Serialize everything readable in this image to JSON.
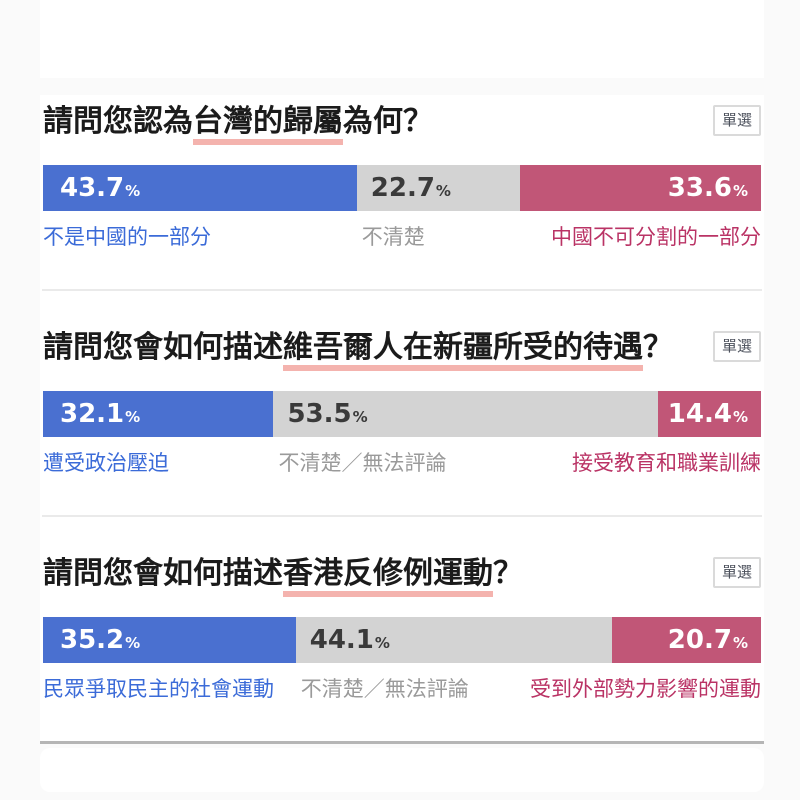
{
  "unit": "%",
  "badge_label": "單選",
  "colors": {
    "blue_bar": "#4a70d0",
    "blue_label": "#3b6bd8",
    "gray_bar": "#d3d3d3",
    "gray_value_text": "#3a3a3a",
    "gray_label": "#9a9a9a",
    "pink_bar": "#c15677",
    "pink_label": "#ba3365",
    "highlight_underline": "#f4b3ae",
    "page_background": "#fafafa",
    "card_background": "#ffffff"
  },
  "questions": [
    {
      "title_prefix": "請問您認為",
      "title_highlight": "台灣的歸屬",
      "title_suffix": "為何？",
      "segments": [
        {
          "value": 43.7,
          "display": "43.7",
          "label": "不是中國的一部分"
        },
        {
          "value": 22.7,
          "display": "22.7",
          "label": "不清楚"
        },
        {
          "value": 33.6,
          "display": "33.6",
          "label": "中國不可分割的一部分"
        }
      ]
    },
    {
      "title_prefix": "請問您會如何描述",
      "title_highlight": "維吾爾人在新疆所受的待遇",
      "title_suffix": "？",
      "segments": [
        {
          "value": 32.1,
          "display": "32.1",
          "label": "遭受政治壓迫"
        },
        {
          "value": 53.5,
          "display": "53.5",
          "label": "不清楚／無法評論"
        },
        {
          "value": 14.4,
          "display": "14.4",
          "label": "接受教育和職業訓練"
        }
      ]
    },
    {
      "title_prefix": "請問您會如何描述",
      "title_highlight": "香港反修例運動",
      "title_suffix": "？",
      "segments": [
        {
          "value": 35.2,
          "display": "35.2",
          "label": "民眾爭取民主的社會運動"
        },
        {
          "value": 44.1,
          "display": "44.1",
          "label": "不清楚／無法評論"
        },
        {
          "value": 20.7,
          "display": "20.7",
          "label": "受到外部勢力影響的運動"
        }
      ]
    }
  ],
  "chart_data": [
    {
      "type": "bar",
      "subtype": "horizontal-stacked",
      "title": "請問您認為台灣的歸屬為何？",
      "badge": "單選",
      "categories": [
        "不是中國的一部分",
        "不清楚",
        "中國不可分割的一部分"
      ],
      "values": [
        43.7,
        22.7,
        33.6
      ],
      "unit": "%",
      "colors": [
        "#4a70d0",
        "#d3d3d3",
        "#c15677"
      ],
      "xlim": [
        0,
        100
      ],
      "grid": false,
      "legend": "labels-below-bar"
    },
    {
      "type": "bar",
      "subtype": "horizontal-stacked",
      "title": "請問您會如何描述維吾爾人在新疆所受的待遇？",
      "badge": "單選",
      "categories": [
        "遭受政治壓迫",
        "不清楚／無法評論",
        "接受教育和職業訓練"
      ],
      "values": [
        32.1,
        53.5,
        14.4
      ],
      "unit": "%",
      "colors": [
        "#4a70d0",
        "#d3d3d3",
        "#c15677"
      ],
      "xlim": [
        0,
        100
      ],
      "grid": false,
      "legend": "labels-below-bar"
    },
    {
      "type": "bar",
      "subtype": "horizontal-stacked",
      "title": "請問您會如何描述香港反修例運動？",
      "badge": "單選",
      "categories": [
        "民眾爭取民主的社會運動",
        "不清楚／無法評論",
        "受到外部勢力影響的運動"
      ],
      "values": [
        35.2,
        44.1,
        20.7
      ],
      "unit": "%",
      "colors": [
        "#4a70d0",
        "#d3d3d3",
        "#c15677"
      ],
      "xlim": [
        0,
        100
      ],
      "grid": false,
      "legend": "labels-below-bar"
    }
  ]
}
